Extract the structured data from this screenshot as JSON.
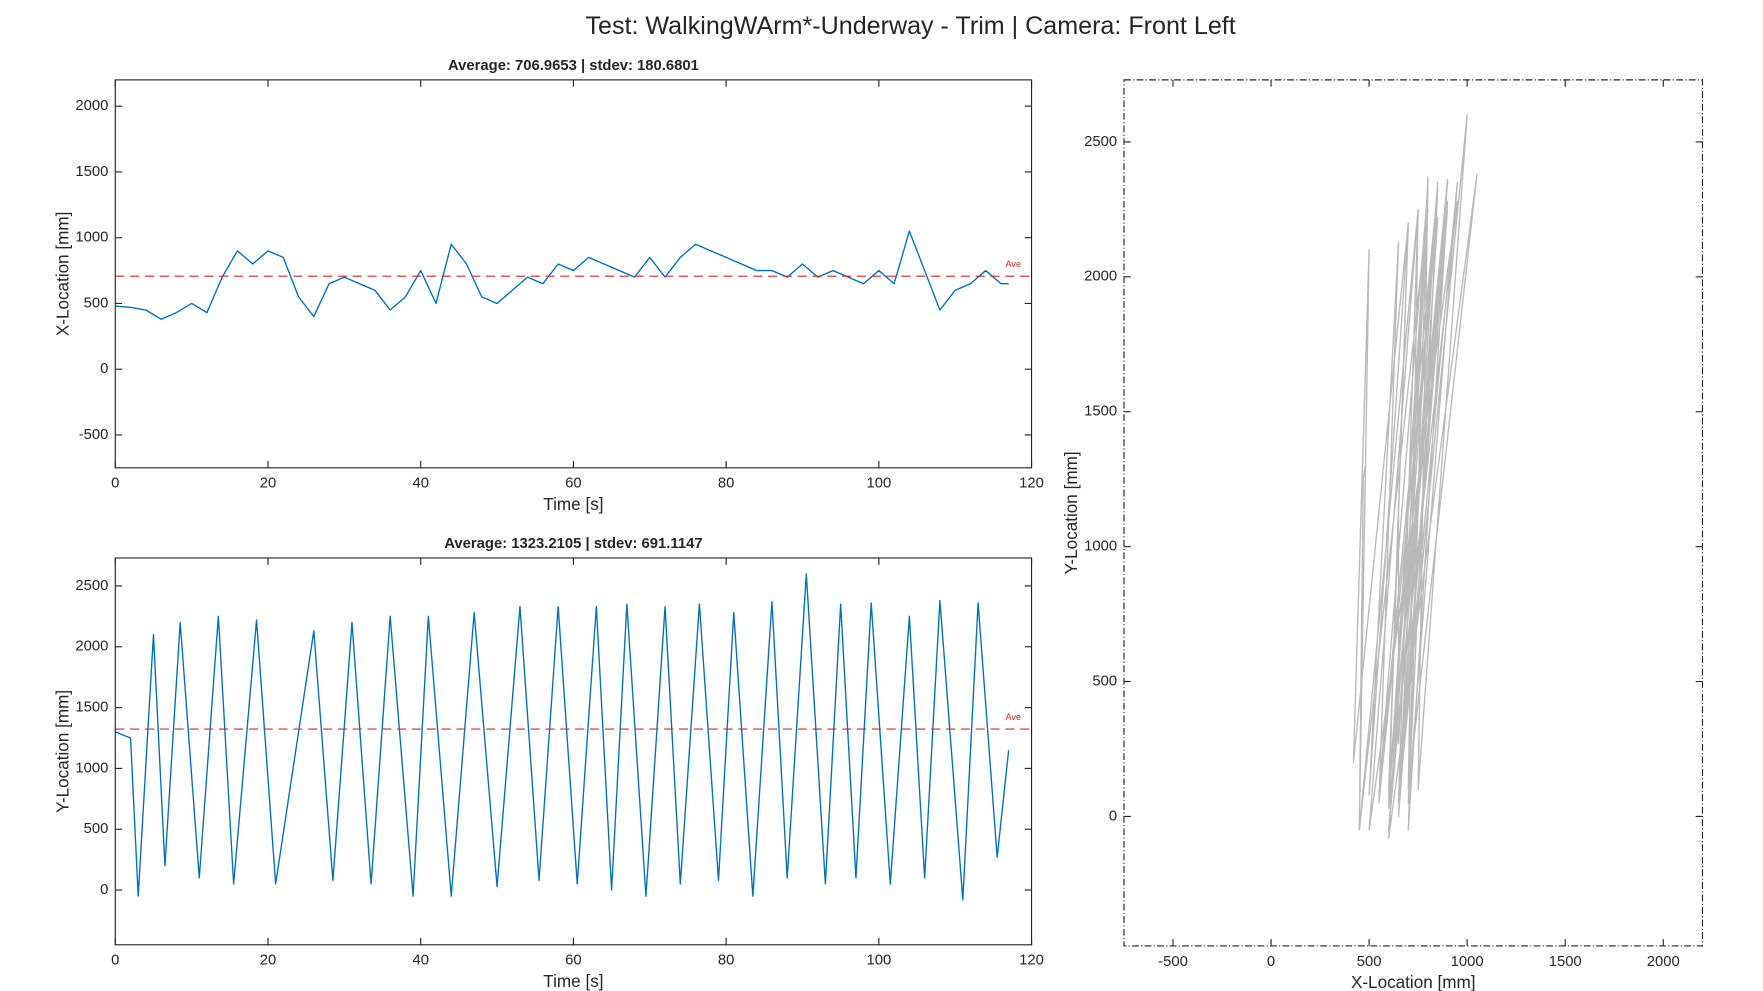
{
  "title": "Test: WalkingWArm*-Underway - Trim  |  Camera: Front Left",
  "chart_data": [
    {
      "type": "line",
      "title": "Average: 706.9653  |  stdev: 180.6801",
      "x_label": "Time [s]",
      "y_label": "X-Location [mm]",
      "x": [
        0,
        2,
        4,
        6,
        8,
        10,
        12,
        14,
        16,
        18,
        20,
        22,
        24,
        26,
        28,
        30,
        32,
        34,
        36,
        38,
        40,
        42,
        44,
        46,
        48,
        50,
        52,
        54,
        56,
        58,
        60,
        62,
        64,
        66,
        68,
        70,
        72,
        74,
        76,
        78,
        80,
        82,
        84,
        86,
        88,
        90,
        92,
        94,
        96,
        98,
        100,
        102,
        104,
        106,
        108,
        110,
        112,
        114,
        116,
        117
      ],
      "values": [
        480,
        470,
        450,
        380,
        430,
        500,
        430,
        700,
        900,
        800,
        900,
        850,
        550,
        400,
        650,
        700,
        650,
        600,
        450,
        550,
        750,
        500,
        950,
        800,
        550,
        500,
        600,
        700,
        650,
        800,
        750,
        850,
        800,
        750,
        700,
        850,
        700,
        850,
        950,
        900,
        850,
        800,
        750,
        750,
        700,
        800,
        700,
        750,
        700,
        650,
        750,
        650,
        1050,
        750,
        450,
        600,
        650,
        750,
        650,
        650
      ],
      "color": "#0072bd",
      "average_line": {
        "value": 706.9653,
        "label": "Ave",
        "color": "#d62728"
      },
      "xlim": [
        0,
        120
      ],
      "xticks": [
        0,
        20,
        40,
        60,
        80,
        100,
        120
      ],
      "ylim": [
        -750,
        2200
      ],
      "yticks": [
        -500,
        0,
        500,
        1000,
        1500,
        2000
      ]
    },
    {
      "type": "line",
      "title": "Average: 1323.2105  |  stdev: 691.1147",
      "x_label": "Time [s]",
      "y_label": "Y-Location [mm]",
      "x": [
        0,
        2,
        3,
        5,
        6.5,
        8.5,
        11,
        13.5,
        15.5,
        18.5,
        21,
        26,
        28.5,
        31,
        33.5,
        36,
        39,
        41,
        44,
        47,
        50,
        53,
        55.5,
        58,
        60.5,
        63,
        65,
        67,
        69.5,
        72,
        74,
        76.5,
        79,
        81,
        83.5,
        86,
        88,
        90.5,
        93,
        95,
        97,
        99,
        101.5,
        104,
        106,
        108,
        111,
        113,
        115.5,
        117
      ],
      "values": [
        1300,
        1250,
        -50,
        2100,
        200,
        2200,
        100,
        2250,
        50,
        2220,
        50,
        2130,
        80,
        2200,
        50,
        2250,
        -50,
        2250,
        -50,
        2280,
        30,
        2330,
        80,
        2330,
        50,
        2330,
        0,
        2350,
        -50,
        2330,
        50,
        2350,
        80,
        2280,
        -50,
        2370,
        100,
        2600,
        50,
        2350,
        100,
        2360,
        50,
        2250,
        100,
        2380,
        -80,
        2360,
        270,
        1150
      ],
      "color": "#0072bd",
      "average_line": {
        "value": 1323.2105,
        "label": "Ave",
        "color": "#d62728"
      },
      "xlim": [
        0,
        120
      ],
      "xticks": [
        0,
        20,
        40,
        60,
        80,
        100,
        120
      ],
      "ylim": [
        -450,
        2730
      ],
      "yticks": [
        0,
        500,
        1000,
        1500,
        2000,
        2500
      ]
    },
    {
      "type": "trajectory",
      "x_label": "X-Location [mm]",
      "y_label": "Y-Location [mm]",
      "x": [
        480,
        470,
        450,
        500,
        420,
        700,
        600,
        900,
        650,
        850,
        550,
        650,
        500,
        700,
        600,
        800,
        450,
        750,
        500,
        950,
        600,
        800,
        550,
        850,
        700,
        800,
        650,
        900,
        600,
        850,
        700,
        950,
        650,
        900,
        700,
        800,
        750,
        1000,
        650,
        850,
        600,
        900,
        650,
        750,
        700,
        1050,
        600,
        800,
        650,
        650
      ],
      "values": [
        1300,
        1250,
        -50,
        2100,
        200,
        2200,
        100,
        2250,
        50,
        2220,
        50,
        2130,
        80,
        2200,
        50,
        2250,
        -50,
        2250,
        -50,
        2280,
        30,
        2330,
        80,
        2330,
        50,
        2330,
        0,
        2350,
        -50,
        2330,
        50,
        2350,
        80,
        2280,
        -50,
        2370,
        100,
        2600,
        50,
        2350,
        100,
        2360,
        50,
        2250,
        100,
        2380,
        -80,
        2360,
        270,
        1150
      ],
      "color": "#808080",
      "xlim": [
        -750,
        2200
      ],
      "xticks": [
        -500,
        0,
        500,
        1000,
        1500,
        2000
      ],
      "ylim": [
        -480,
        2730
      ],
      "yticks": [
        0,
        500,
        1000,
        1500,
        2000,
        2500
      ]
    }
  ]
}
